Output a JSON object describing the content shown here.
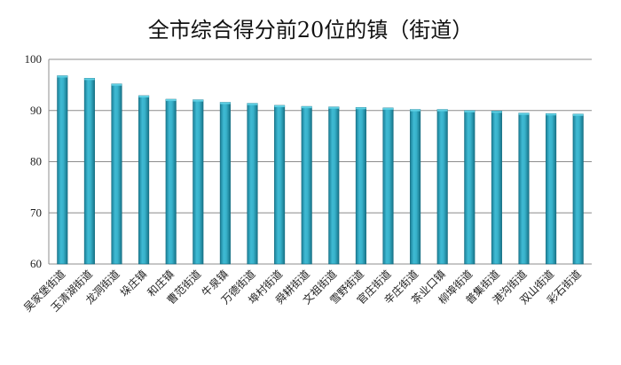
{
  "chart_data": {
    "type": "bar",
    "title": "全市综合得分前20位的镇（街道）",
    "xlabel": "",
    "ylabel": "",
    "ylim": [
      60,
      100
    ],
    "yticks": [
      60,
      70,
      80,
      90,
      100
    ],
    "grid": true,
    "bar_color": "#2aa3bd",
    "categories": [
      "吴家堡街道",
      "玉清湖街道",
      "龙洞街道",
      "垛庄镇",
      "和庄镇",
      "曹范街道",
      "牛泉镇",
      "万德街道",
      "埠村街道",
      "舜耕街道",
      "文祖街道",
      "雪野街道",
      "官庄街道",
      "辛庄街道",
      "茶业口镇",
      "柳埠街道",
      "普集街道",
      "港沟街道",
      "双山街道",
      "彩石街道"
    ],
    "values": [
      96.8,
      96.3,
      95.2,
      92.9,
      92.2,
      92.1,
      91.6,
      91.4,
      91.0,
      90.8,
      90.7,
      90.6,
      90.5,
      90.2,
      90.2,
      90.0,
      89.9,
      89.5,
      89.4,
      89.3
    ]
  }
}
